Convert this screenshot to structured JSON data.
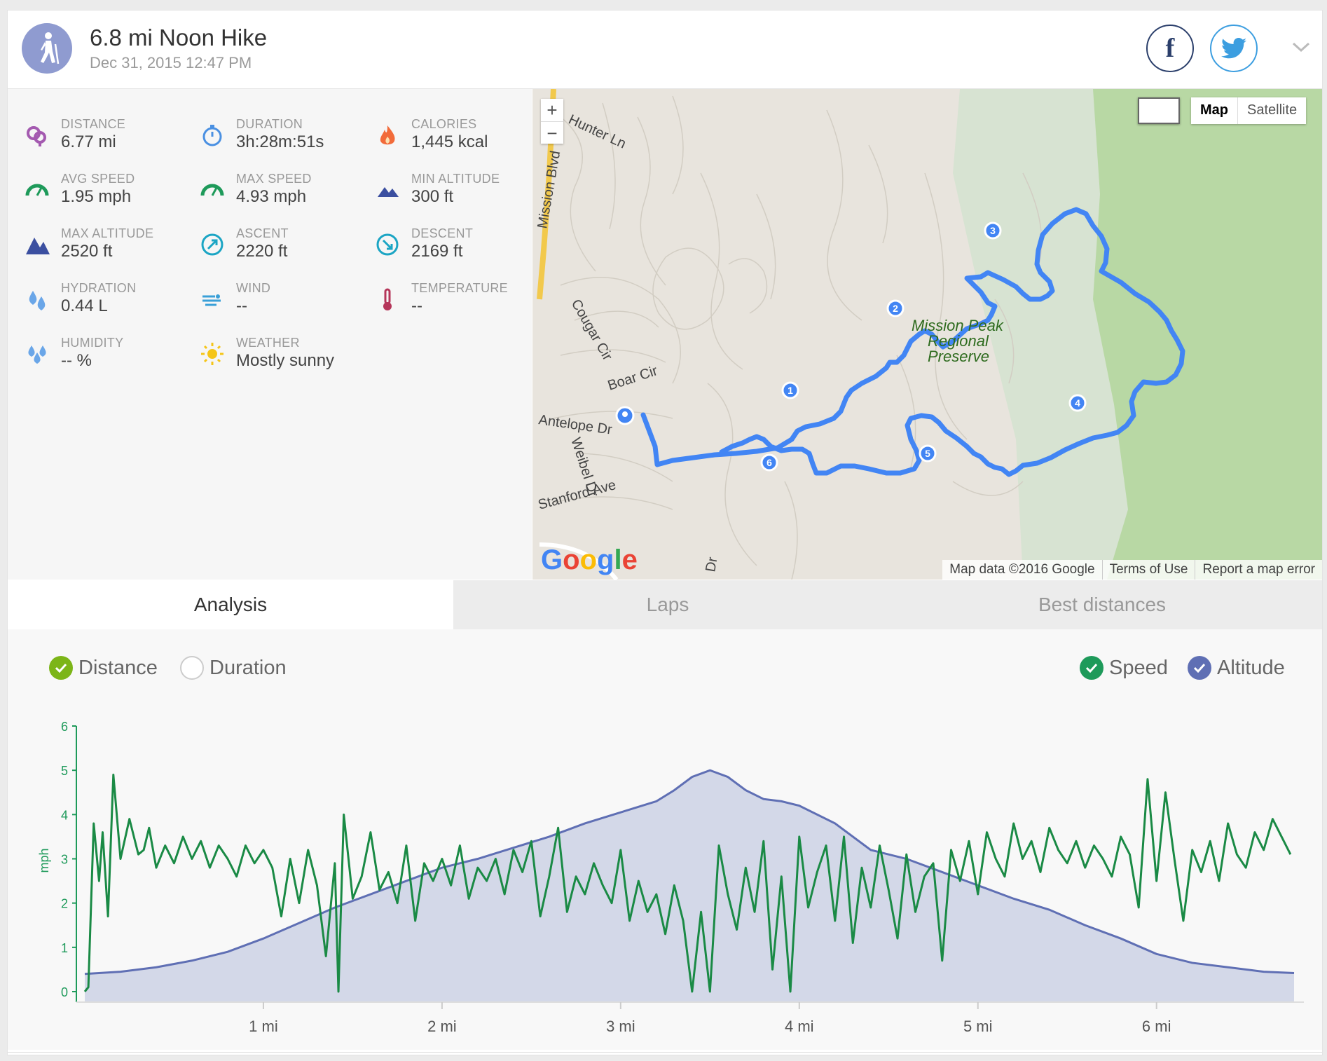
{
  "header": {
    "title": "6.8 mi Noon Hike",
    "subtitle": "Dec 31, 2015 12:47 PM",
    "activity_icon": "hiker-icon",
    "facebook_label": "f",
    "colors": {
      "avatar": "#8f9bd0",
      "facebook": "#2b3f6b",
      "twitter": "#3c9ee0"
    }
  },
  "stats": [
    {
      "label": "DISTANCE",
      "value": "6.77 mi",
      "icon": "distance-pin-icon",
      "color": "#a45ab0"
    },
    {
      "label": "DURATION",
      "value": "3h:28m:51s",
      "icon": "stopwatch-icon",
      "color": "#4a90e2"
    },
    {
      "label": "CALORIES",
      "value": "1,445 kcal",
      "icon": "flame-icon",
      "color": "#f26b3a"
    },
    {
      "label": "AVG SPEED",
      "value": "1.95 mph",
      "icon": "speedometer-icon",
      "color": "#1e9a5a"
    },
    {
      "label": "MAX SPEED",
      "value": "4.93 mph",
      "icon": "speedometer-icon",
      "color": "#1e9a5a"
    },
    {
      "label": "MIN ALTITUDE",
      "value": "300 ft",
      "icon": "low-mountain-icon",
      "color": "#3b4fa0"
    },
    {
      "label": "MAX ALTITUDE",
      "value": "2520 ft",
      "icon": "mountain-icon",
      "color": "#3b4fa0"
    },
    {
      "label": "ASCENT",
      "value": "2220 ft",
      "icon": "ascent-arrow-icon",
      "color": "#1ba5c4"
    },
    {
      "label": "DESCENT",
      "value": "2169 ft",
      "icon": "descent-arrow-icon",
      "color": "#1ba5c4"
    },
    {
      "label": "HYDRATION",
      "value": "0.44 L",
      "icon": "water-drops-icon",
      "color": "#6aa6e8"
    },
    {
      "label": "WIND",
      "value": "--",
      "icon": "wind-icon",
      "color": "#3aa0d8"
    },
    {
      "label": "TEMPERATURE",
      "value": "--",
      "icon": "thermometer-icon",
      "color": "#b5365a"
    },
    {
      "label": "HUMIDITY",
      "value": "-- %",
      "icon": "humidity-drops-icon",
      "color": "#6aa6e8"
    },
    {
      "label": "WEATHER",
      "value": "Mostly sunny",
      "icon": "sun-icon",
      "color": "#f5c518"
    }
  ],
  "map": {
    "zoom_in": "+",
    "zoom_out": "−",
    "map_button": "Map",
    "satellite_button": "Satellite",
    "footer": [
      "Map data ©2016 Google",
      "Terms of Use",
      "Report a map error"
    ],
    "google_logo": "Google",
    "street_labels": [
      "Hunter Ln",
      "Mission Blvd",
      "Cougar Cir",
      "Boar Cir",
      "Antelope Dr",
      "Weibel Dr",
      "Stanford Ave",
      "Dr"
    ],
    "park_label": [
      "Mission Peak",
      "Regional",
      "Preserve"
    ],
    "lap_markers": [
      "1",
      "2",
      "3",
      "4",
      "5",
      "6"
    ],
    "route_color": "#4285f4"
  },
  "tabs": [
    {
      "label": "Analysis",
      "active": true
    },
    {
      "label": "Laps",
      "active": false
    },
    {
      "label": "Best distances",
      "active": false
    }
  ],
  "toggles": {
    "distance": {
      "label": "Distance",
      "checked": true,
      "color": "#7cb518"
    },
    "duration": {
      "label": "Duration",
      "checked": false
    },
    "speed": {
      "label": "Speed",
      "checked": true,
      "color": "#1e9a5a"
    },
    "altitude": {
      "label": "Altitude",
      "checked": true,
      "color": "#5f6fb4"
    }
  },
  "chart_data": {
    "type": "line",
    "ylabel": "mph",
    "xlim": [
      0,
      6.77
    ],
    "ylim": [
      0,
      6
    ],
    "yticks": [
      0,
      1,
      2,
      3,
      4,
      5,
      6
    ],
    "xticks": [
      1,
      2,
      3,
      4,
      5,
      6
    ],
    "xtick_labels": [
      "1 mi",
      "2 mi",
      "3 mi",
      "4 mi",
      "5 mi",
      "6 mi"
    ],
    "grid": false,
    "series": [
      {
        "name": "Speed",
        "color": "#1a8a45",
        "x": [
          0,
          0.02,
          0.05,
          0.08,
          0.1,
          0.13,
          0.16,
          0.2,
          0.25,
          0.3,
          0.33,
          0.36,
          0.4,
          0.45,
          0.5,
          0.55,
          0.6,
          0.65,
          0.7,
          0.75,
          0.8,
          0.85,
          0.9,
          0.95,
          1.0,
          1.05,
          1.1,
          1.15,
          1.2,
          1.25,
          1.3,
          1.35,
          1.4,
          1.42,
          1.45,
          1.5,
          1.55,
          1.6,
          1.65,
          1.7,
          1.75,
          1.8,
          1.85,
          1.9,
          1.95,
          2.0,
          2.05,
          2.1,
          2.15,
          2.2,
          2.25,
          2.3,
          2.35,
          2.4,
          2.45,
          2.5,
          2.55,
          2.6,
          2.65,
          2.7,
          2.75,
          2.8,
          2.85,
          2.9,
          2.95,
          3.0,
          3.05,
          3.1,
          3.15,
          3.2,
          3.25,
          3.3,
          3.35,
          3.4,
          3.45,
          3.5,
          3.55,
          3.6,
          3.65,
          3.7,
          3.75,
          3.8,
          3.85,
          3.9,
          3.95,
          4.0,
          4.05,
          4.1,
          4.15,
          4.2,
          4.25,
          4.3,
          4.35,
          4.4,
          4.45,
          4.5,
          4.55,
          4.6,
          4.65,
          4.7,
          4.75,
          4.8,
          4.85,
          4.9,
          4.95,
          5.0,
          5.05,
          5.1,
          5.15,
          5.2,
          5.25,
          5.3,
          5.35,
          5.4,
          5.45,
          5.5,
          5.55,
          5.6,
          5.65,
          5.7,
          5.75,
          5.8,
          5.85,
          5.9,
          5.95,
          6.0,
          6.05,
          6.1,
          6.15,
          6.2,
          6.25,
          6.3,
          6.35,
          6.4,
          6.45,
          6.5,
          6.55,
          6.6,
          6.65,
          6.7,
          6.75
        ],
        "values": [
          0,
          0.1,
          3.8,
          2.5,
          3.6,
          1.7,
          4.9,
          3.0,
          3.9,
          3.1,
          3.2,
          3.7,
          2.8,
          3.3,
          2.9,
          3.5,
          3.0,
          3.4,
          2.8,
          3.3,
          3.0,
          2.6,
          3.3,
          2.9,
          3.2,
          2.8,
          1.7,
          3.0,
          2.0,
          3.2,
          2.4,
          0.8,
          2.9,
          0.0,
          4.0,
          2.1,
          2.6,
          3.6,
          2.3,
          2.7,
          2.0,
          3.3,
          1.6,
          2.9,
          2.5,
          3.0,
          2.4,
          3.3,
          2.1,
          2.8,
          2.5,
          3.0,
          2.2,
          3.2,
          2.7,
          3.4,
          1.7,
          2.6,
          3.7,
          1.8,
          2.6,
          2.2,
          2.9,
          2.4,
          2.0,
          3.2,
          1.6,
          2.5,
          1.8,
          2.2,
          1.3,
          2.4,
          1.6,
          0.0,
          1.8,
          0.0,
          3.3,
          2.2,
          1.4,
          2.8,
          1.8,
          3.4,
          0.5,
          2.6,
          0.0,
          3.5,
          1.9,
          2.7,
          3.3,
          1.6,
          3.5,
          1.1,
          2.8,
          1.9,
          3.3,
          2.3,
          1.2,
          3.1,
          1.8,
          2.6,
          2.9,
          0.7,
          3.2,
          2.5,
          3.4,
          2.2,
          3.6,
          3.0,
          2.6,
          3.8,
          3.0,
          3.4,
          2.7,
          3.7,
          3.2,
          2.9,
          3.4,
          2.8,
          3.3,
          3.0,
          2.6,
          3.5,
          3.1,
          1.9,
          4.8,
          2.5,
          4.5,
          3.0,
          1.6,
          3.2,
          2.7,
          3.4,
          2.5,
          3.8,
          3.1,
          2.8,
          3.6,
          3.2,
          3.9,
          3.5,
          3.1
        ],
        "max_label": "4.93"
      },
      {
        "name": "Altitude",
        "color": "#5f6fb4",
        "fill": "#d3d8e8",
        "x": [
          0,
          0.2,
          0.4,
          0.6,
          0.8,
          1.0,
          1.2,
          1.4,
          1.6,
          1.8,
          2.0,
          2.2,
          2.4,
          2.6,
          2.8,
          3.0,
          3.2,
          3.3,
          3.4,
          3.5,
          3.6,
          3.7,
          3.8,
          3.9,
          4.0,
          4.2,
          4.4,
          4.6,
          4.8,
          5.0,
          5.2,
          5.4,
          5.6,
          5.8,
          6.0,
          6.2,
          6.4,
          6.6,
          6.77
        ],
        "values": [
          0.4,
          0.45,
          0.55,
          0.7,
          0.9,
          1.2,
          1.55,
          1.9,
          2.2,
          2.5,
          2.8,
          3.0,
          3.25,
          3.5,
          3.8,
          4.05,
          4.3,
          4.55,
          4.85,
          5.0,
          4.85,
          4.55,
          4.35,
          4.3,
          4.2,
          3.8,
          3.2,
          3.0,
          2.7,
          2.4,
          2.1,
          1.85,
          1.5,
          1.2,
          0.85,
          0.65,
          0.55,
          0.45,
          0.42
        ]
      }
    ]
  }
}
